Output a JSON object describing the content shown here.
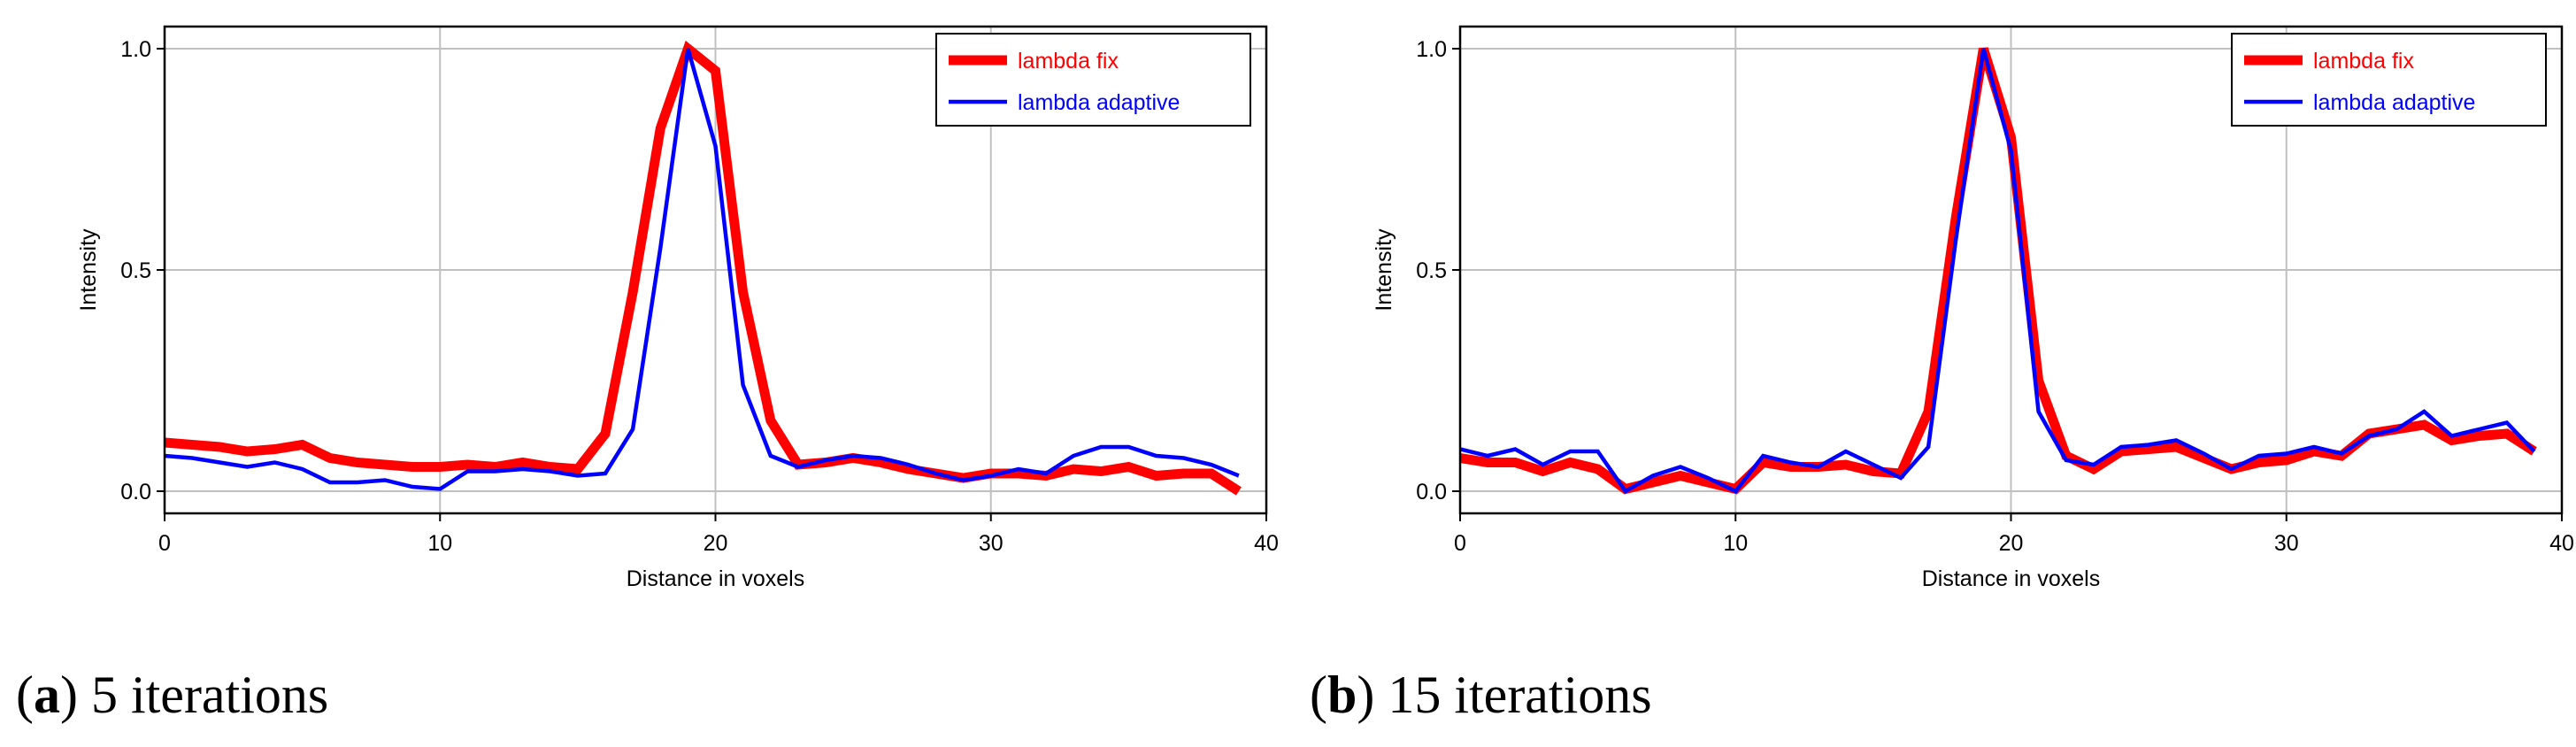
{
  "chart_data": [
    {
      "type": "line",
      "caption_letter": "a",
      "caption_text": "5 iterations",
      "title": "",
      "xlabel": "Distance in voxels",
      "ylabel": "Intensity",
      "xlim": [
        0,
        40
      ],
      "ylim": [
        -0.05,
        1.05
      ],
      "xticks": [
        0,
        10,
        20,
        30,
        40
      ],
      "xtick_labels": [
        "0",
        "10",
        "20",
        "30",
        "40"
      ],
      "yticks": [
        0.0,
        0.5,
        1.0
      ],
      "ytick_labels": [
        "0.0",
        "0.5",
        "1.0"
      ],
      "grid": true,
      "legend_position": "top-right",
      "series": [
        {
          "name": "lambda fix",
          "color": "#ff0000",
          "x": [
            0,
            1,
            2,
            3,
            4,
            5,
            6,
            7,
            8,
            9,
            10,
            11,
            12,
            13,
            14,
            15,
            16,
            17,
            18,
            19,
            20,
            21,
            22,
            23,
            24,
            25,
            26,
            27,
            28,
            29,
            30,
            31,
            32,
            33,
            34,
            35,
            36,
            37,
            38,
            39
          ],
          "values": [
            0.11,
            0.105,
            0.1,
            0.09,
            0.095,
            0.105,
            0.075,
            0.065,
            0.06,
            0.055,
            0.055,
            0.06,
            0.055,
            0.065,
            0.055,
            0.05,
            0.13,
            0.45,
            0.82,
            1.0,
            0.95,
            0.45,
            0.16,
            0.06,
            0.065,
            0.075,
            0.065,
            0.05,
            0.04,
            0.03,
            0.04,
            0.04,
            0.035,
            0.05,
            0.045,
            0.055,
            0.035,
            0.04,
            0.04,
            0.0
          ]
        },
        {
          "name": "lambda adaptive",
          "color": "#0000ff",
          "x": [
            0,
            1,
            2,
            3,
            4,
            5,
            6,
            7,
            8,
            9,
            10,
            11,
            12,
            13,
            14,
            15,
            16,
            17,
            18,
            19,
            20,
            21,
            22,
            23,
            24,
            25,
            26,
            27,
            28,
            29,
            30,
            31,
            32,
            33,
            34,
            35,
            36,
            37,
            38,
            39
          ],
          "values": [
            0.08,
            0.075,
            0.065,
            0.055,
            0.065,
            0.05,
            0.02,
            0.02,
            0.025,
            0.01,
            0.005,
            0.045,
            0.045,
            0.05,
            0.045,
            0.035,
            0.04,
            0.14,
            0.55,
            1.0,
            0.78,
            0.24,
            0.08,
            0.055,
            0.07,
            0.08,
            0.075,
            0.06,
            0.04,
            0.025,
            0.035,
            0.05,
            0.04,
            0.08,
            0.1,
            0.1,
            0.08,
            0.075,
            0.06,
            0.035
          ]
        }
      ]
    },
    {
      "type": "line",
      "caption_letter": "b",
      "caption_text": "15 iterations",
      "title": "",
      "xlabel": "Distance in voxels",
      "ylabel": "Intensity",
      "xlim": [
        0,
        40
      ],
      "ylim": [
        -0.05,
        1.05
      ],
      "xticks": [
        0,
        10,
        20,
        30,
        40
      ],
      "xtick_labels": [
        "0",
        "10",
        "20",
        "30",
        "40"
      ],
      "yticks": [
        0.0,
        0.5,
        1.0
      ],
      "ytick_labels": [
        "0.0",
        "0.5",
        "1.0"
      ],
      "grid": true,
      "legend_position": "top-right",
      "series": [
        {
          "name": "lambda fix",
          "color": "#ff0000",
          "x": [
            0,
            1,
            2,
            3,
            4,
            5,
            6,
            7,
            8,
            9,
            10,
            11,
            12,
            13,
            14,
            15,
            16,
            17,
            18,
            19,
            20,
            21,
            22,
            23,
            24,
            25,
            26,
            27,
            28,
            29,
            30,
            31,
            32,
            33,
            34,
            35,
            36,
            37,
            38,
            39
          ],
          "values": [
            0.075,
            0.065,
            0.065,
            0.045,
            0.065,
            0.05,
            0.005,
            0.02,
            0.035,
            0.02,
            0.005,
            0.065,
            0.055,
            0.055,
            0.06,
            0.045,
            0.04,
            0.18,
            0.62,
            1.0,
            0.8,
            0.25,
            0.08,
            0.05,
            0.09,
            0.095,
            0.1,
            0.075,
            0.05,
            0.065,
            0.07,
            0.09,
            0.08,
            0.13,
            0.14,
            0.15,
            0.115,
            0.125,
            0.13,
            0.09
          ]
        },
        {
          "name": "lambda adaptive",
          "color": "#0000ff",
          "x": [
            0,
            1,
            2,
            3,
            4,
            5,
            6,
            7,
            8,
            9,
            10,
            11,
            12,
            13,
            14,
            15,
            16,
            17,
            18,
            19,
            20,
            21,
            22,
            23,
            24,
            25,
            26,
            27,
            28,
            29,
            30,
            31,
            32,
            33,
            34,
            35,
            36,
            37,
            38,
            39
          ],
          "values": [
            0.095,
            0.08,
            0.095,
            0.06,
            0.09,
            0.09,
            0.0,
            0.035,
            0.055,
            0.03,
            0.0,
            0.08,
            0.065,
            0.055,
            0.09,
            0.06,
            0.03,
            0.1,
            0.57,
            1.0,
            0.77,
            0.18,
            0.07,
            0.06,
            0.1,
            0.105,
            0.115,
            0.085,
            0.05,
            0.08,
            0.085,
            0.1,
            0.085,
            0.125,
            0.14,
            0.18,
            0.125,
            0.14,
            0.155,
            0.09
          ]
        }
      ]
    }
  ]
}
